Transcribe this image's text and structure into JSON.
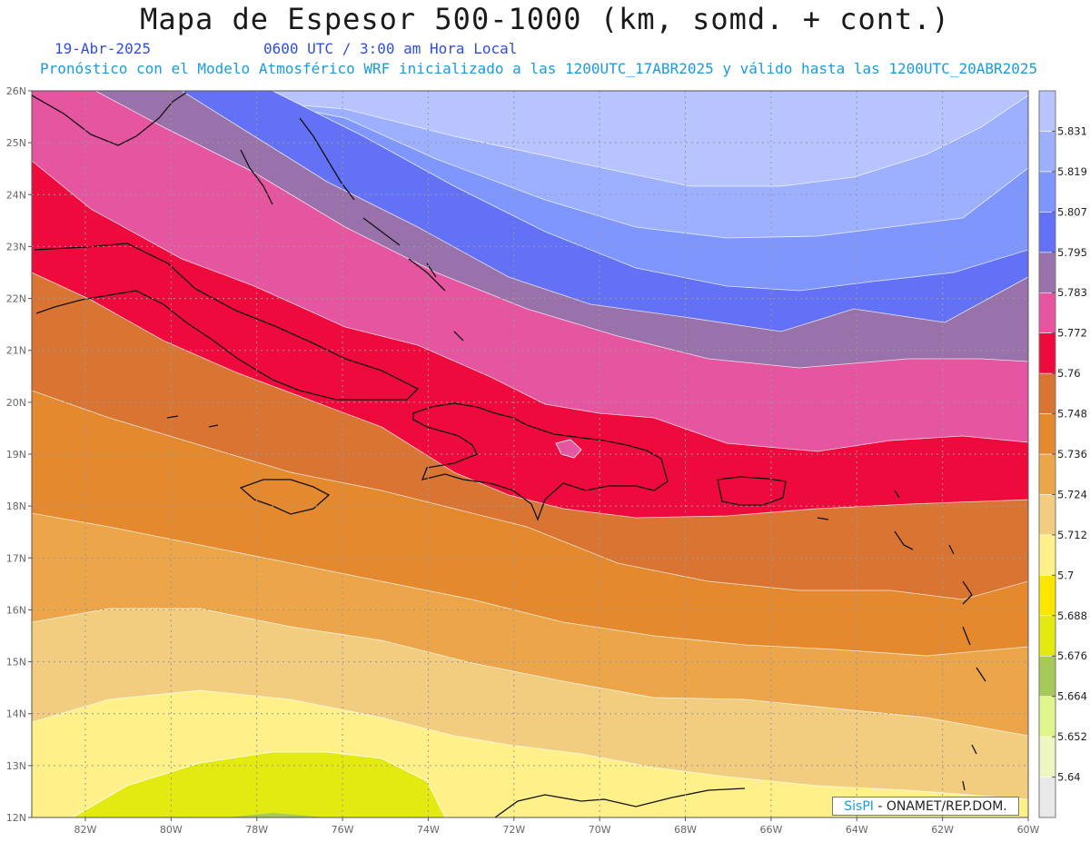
{
  "title": "Mapa de Espesor 500-1000 (km, somd. + cont.)",
  "date_label": "19-Abr-2025",
  "time_label": "0600 UTC / 3:00 am Hora Local",
  "model_label": "Pronóstico con el Modelo Atmosférico WRF inicializado a las 1200UTC_17ABR2025 y válido hasta las  1200UTC_20ABR2025",
  "credit": {
    "brand": "SisPI",
    "text": "- ONAMET/REP.DOM."
  },
  "chart_data": {
    "type": "heatmap",
    "x_ticks": [
      "82W",
      "80W",
      "78W",
      "76W",
      "74W",
      "72W",
      "70W",
      "68W",
      "66W",
      "64W",
      "62W",
      "60W"
    ],
    "y_ticks": [
      "26N",
      "25N",
      "24N",
      "23N",
      "22N",
      "21N",
      "20N",
      "19N",
      "18N",
      "17N",
      "16N",
      "15N",
      "14N",
      "13N",
      "12N"
    ],
    "xlim_deg": [
      -83.25,
      -60
    ],
    "ylim_deg": [
      12,
      26
    ],
    "grid": true,
    "colorbar": {
      "labels": [
        "5.64",
        "5.652",
        "5.664",
        "5.676",
        "5.688",
        "5.7",
        "5.712",
        "5.724",
        "5.736",
        "5.748",
        "5.76",
        "5.772",
        "5.783",
        "5.795",
        "5.807",
        "5.819",
        "5.831"
      ],
      "colors": [
        "#b8c4ff",
        "#9db0ff",
        "#8096ff",
        "#6271f6",
        "#9a72ab",
        "#e6559f",
        "#ee0a3c",
        "#da7433",
        "#e5892f",
        "#eca649",
        "#f2cd7f",
        "#fff08a",
        "#ffe500",
        "#e2ea10",
        "#a7c95a",
        "#e0f58c",
        "#eef6c2",
        "#e9e9e9"
      ]
    }
  }
}
